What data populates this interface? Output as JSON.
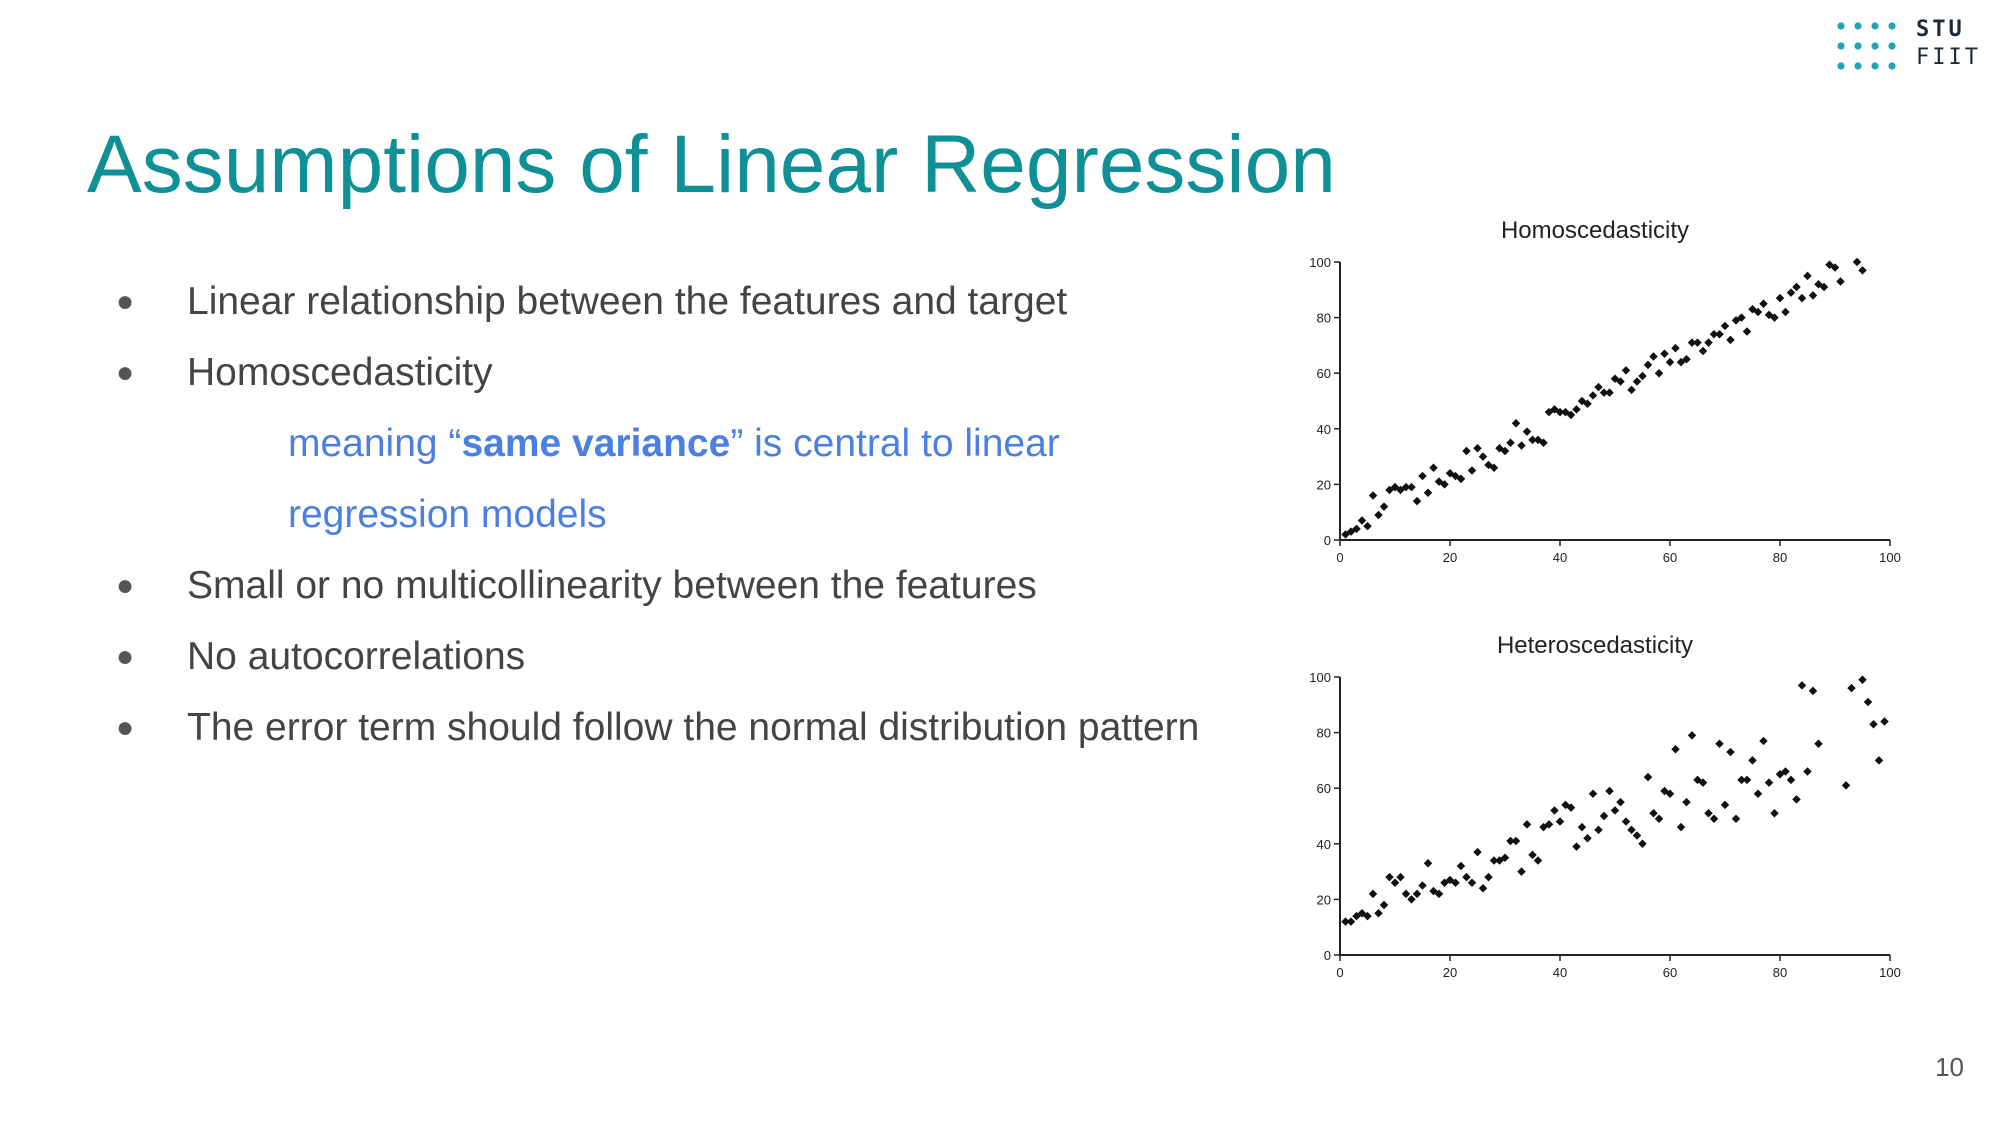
{
  "logo": {
    "line1": "STU",
    "line2": "FIIT",
    "color": "#1fa4b6"
  },
  "title": "Assumptions of Linear Regression",
  "bullets": [
    "Linear relationship between the features and target",
    "Homoscedasticity",
    "Small or no multicollinearity between the features",
    "No autocorrelations",
    "The error term should follow the normal distribution pattern"
  ],
  "sub": {
    "prefix": "meaning “",
    "bold": "same variance",
    "suffix": "” is central to linear regression models",
    "color": "#4b7fe0"
  },
  "page_number": "10",
  "chart_data": [
    {
      "type": "scatter",
      "title": "Homoscedasticity",
      "xlim": [
        0,
        100
      ],
      "ylim": [
        0,
        100
      ],
      "xticks": [
        0,
        20,
        40,
        60,
        80,
        100
      ],
      "yticks": [
        0,
        20,
        40,
        60,
        80,
        100
      ],
      "grid": false,
      "points": [
        [
          1,
          2
        ],
        [
          2,
          3
        ],
        [
          3,
          4
        ],
        [
          4,
          7
        ],
        [
          5,
          5
        ],
        [
          6,
          16
        ],
        [
          7,
          9
        ],
        [
          8,
          12
        ],
        [
          9,
          18
        ],
        [
          10,
          19
        ],
        [
          11,
          18
        ],
        [
          12,
          19
        ],
        [
          13,
          19
        ],
        [
          14,
          14
        ],
        [
          15,
          23
        ],
        [
          16,
          17
        ],
        [
          17,
          26
        ],
        [
          18,
          21
        ],
        [
          19,
          20
        ],
        [
          20,
          24
        ],
        [
          21,
          23
        ],
        [
          22,
          22
        ],
        [
          23,
          32
        ],
        [
          24,
          25
        ],
        [
          25,
          33
        ],
        [
          26,
          30
        ],
        [
          27,
          27
        ],
        [
          28,
          26
        ],
        [
          29,
          33
        ],
        [
          30,
          32
        ],
        [
          31,
          35
        ],
        [
          32,
          42
        ],
        [
          33,
          34
        ],
        [
          34,
          39
        ],
        [
          35,
          36
        ],
        [
          36,
          36
        ],
        [
          37,
          35
        ],
        [
          38,
          46
        ],
        [
          39,
          47
        ],
        [
          40,
          46
        ],
        [
          41,
          46
        ],
        [
          42,
          45
        ],
        [
          43,
          47
        ],
        [
          44,
          50
        ],
        [
          45,
          49
        ],
        [
          46,
          52
        ],
        [
          47,
          55
        ],
        [
          48,
          53
        ],
        [
          49,
          53
        ],
        [
          50,
          58
        ],
        [
          51,
          57
        ],
        [
          52,
          61
        ],
        [
          53,
          54
        ],
        [
          54,
          57
        ],
        [
          55,
          59
        ],
        [
          56,
          63
        ],
        [
          57,
          66
        ],
        [
          58,
          60
        ],
        [
          59,
          67
        ],
        [
          60,
          64
        ],
        [
          61,
          69
        ],
        [
          62,
          64
        ],
        [
          63,
          65
        ],
        [
          64,
          71
        ],
        [
          65,
          71
        ],
        [
          66,
          68
        ],
        [
          67,
          71
        ],
        [
          68,
          74
        ],
        [
          69,
          74
        ],
        [
          70,
          77
        ],
        [
          71,
          72
        ],
        [
          72,
          79
        ],
        [
          73,
          80
        ],
        [
          74,
          75
        ],
        [
          75,
          83
        ],
        [
          76,
          82
        ],
        [
          77,
          85
        ],
        [
          78,
          81
        ],
        [
          79,
          80
        ],
        [
          80,
          87
        ],
        [
          81,
          82
        ],
        [
          82,
          89
        ],
        [
          83,
          91
        ],
        [
          84,
          87
        ],
        [
          85,
          95
        ],
        [
          86,
          88
        ],
        [
          87,
          92
        ],
        [
          88,
          91
        ],
        [
          89,
          99
        ],
        [
          90,
          98
        ],
        [
          91,
          93
        ],
        [
          94,
          100
        ],
        [
          95,
          97
        ]
      ]
    },
    {
      "type": "scatter",
      "title": "Heteroscedasticity",
      "xlim": [
        0,
        100
      ],
      "ylim": [
        0,
        100
      ],
      "xticks": [
        0,
        20,
        40,
        60,
        80,
        100
      ],
      "yticks": [
        0,
        20,
        40,
        60,
        80,
        100
      ],
      "grid": false,
      "points": [
        [
          1,
          12
        ],
        [
          2,
          12
        ],
        [
          3,
          14
        ],
        [
          4,
          15
        ],
        [
          5,
          14
        ],
        [
          6,
          22
        ],
        [
          7,
          15
        ],
        [
          8,
          18
        ],
        [
          9,
          28
        ],
        [
          10,
          26
        ],
        [
          11,
          28
        ],
        [
          12,
          22
        ],
        [
          13,
          20
        ],
        [
          14,
          22
        ],
        [
          15,
          25
        ],
        [
          16,
          33
        ],
        [
          17,
          23
        ],
        [
          18,
          22
        ],
        [
          19,
          26
        ],
        [
          20,
          27
        ],
        [
          21,
          26
        ],
        [
          22,
          32
        ],
        [
          23,
          28
        ],
        [
          24,
          26
        ],
        [
          25,
          37
        ],
        [
          26,
          24
        ],
        [
          27,
          28
        ],
        [
          28,
          34
        ],
        [
          29,
          34
        ],
        [
          30,
          35
        ],
        [
          31,
          41
        ],
        [
          32,
          41
        ],
        [
          33,
          30
        ],
        [
          34,
          47
        ],
        [
          35,
          36
        ],
        [
          36,
          34
        ],
        [
          37,
          46
        ],
        [
          38,
          47
        ],
        [
          39,
          52
        ],
        [
          40,
          48
        ],
        [
          41,
          54
        ],
        [
          42,
          53
        ],
        [
          43,
          39
        ],
        [
          44,
          46
        ],
        [
          45,
          42
        ],
        [
          46,
          58
        ],
        [
          47,
          45
        ],
        [
          48,
          50
        ],
        [
          49,
          59
        ],
        [
          50,
          52
        ],
        [
          51,
          55
        ],
        [
          52,
          48
        ],
        [
          53,
          45
        ],
        [
          54,
          43
        ],
        [
          55,
          40
        ],
        [
          56,
          64
        ],
        [
          57,
          51
        ],
        [
          58,
          49
        ],
        [
          59,
          59
        ],
        [
          60,
          58
        ],
        [
          61,
          74
        ],
        [
          62,
          46
        ],
        [
          63,
          55
        ],
        [
          64,
          79
        ],
        [
          65,
          63
        ],
        [
          66,
          62
        ],
        [
          67,
          51
        ],
        [
          68,
          49
        ],
        [
          69,
          76
        ],
        [
          70,
          54
        ],
        [
          71,
          73
        ],
        [
          72,
          49
        ],
        [
          73,
          63
        ],
        [
          74,
          63
        ],
        [
          75,
          70
        ],
        [
          76,
          58
        ],
        [
          77,
          77
        ],
        [
          78,
          62
        ],
        [
          79,
          51
        ],
        [
          80,
          65
        ],
        [
          81,
          66
        ],
        [
          82,
          63
        ],
        [
          83,
          56
        ],
        [
          84,
          97
        ],
        [
          85,
          66
        ],
        [
          86,
          95
        ],
        [
          87,
          76
        ],
        [
          92,
          61
        ],
        [
          93,
          96
        ],
        [
          95,
          99
        ],
        [
          96,
          91
        ],
        [
          97,
          83
        ],
        [
          98,
          70
        ],
        [
          99,
          84
        ]
      ]
    }
  ]
}
